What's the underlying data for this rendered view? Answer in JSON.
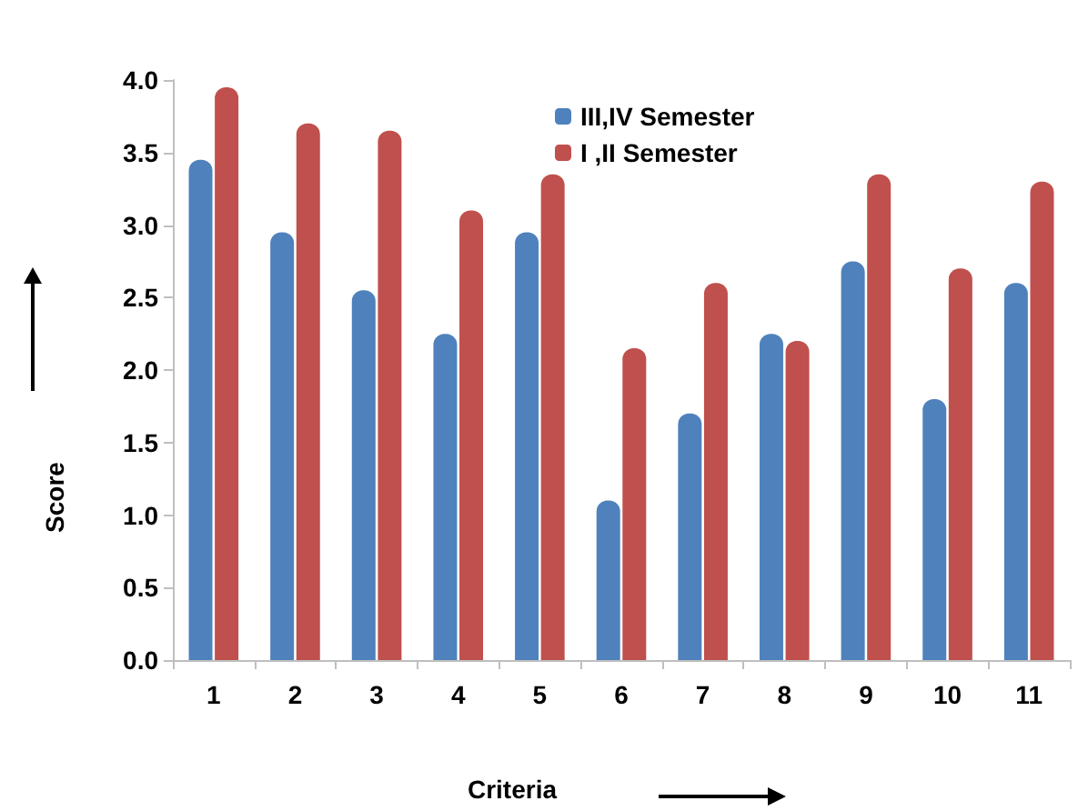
{
  "chart_data": {
    "type": "bar",
    "xlabel": "Criteria",
    "ylabel": "Score",
    "categories": [
      "1",
      "2",
      "3",
      "4",
      "5",
      "6",
      "7",
      "8",
      "9",
      "10",
      "11"
    ],
    "series": [
      {
        "name": "III,IV Semester",
        "color": "#4f81bd",
        "values": [
          3.45,
          2.95,
          2.55,
          2.25,
          2.95,
          1.1,
          1.7,
          2.25,
          2.75,
          1.8,
          2.6
        ]
      },
      {
        "name": "I ,II Semester",
        "color": "#c0504d",
        "values": [
          3.95,
          3.7,
          3.65,
          3.1,
          3.35,
          2.15,
          2.6,
          2.2,
          3.35,
          2.7,
          3.3
        ]
      }
    ],
    "ylim": [
      0,
      4
    ],
    "yticks": [
      {
        "value": 0,
        "label": "0.0"
      },
      0.5,
      {
        "value": 1,
        "label": "1.0"
      },
      1.5,
      {
        "value": 2,
        "label": "2.0"
      },
      2.5,
      {
        "value": 3,
        "label": "3.0"
      },
      3.5,
      {
        "value": 4,
        "label": "4.0"
      }
    ],
    "grid": false,
    "legend": "top"
  }
}
